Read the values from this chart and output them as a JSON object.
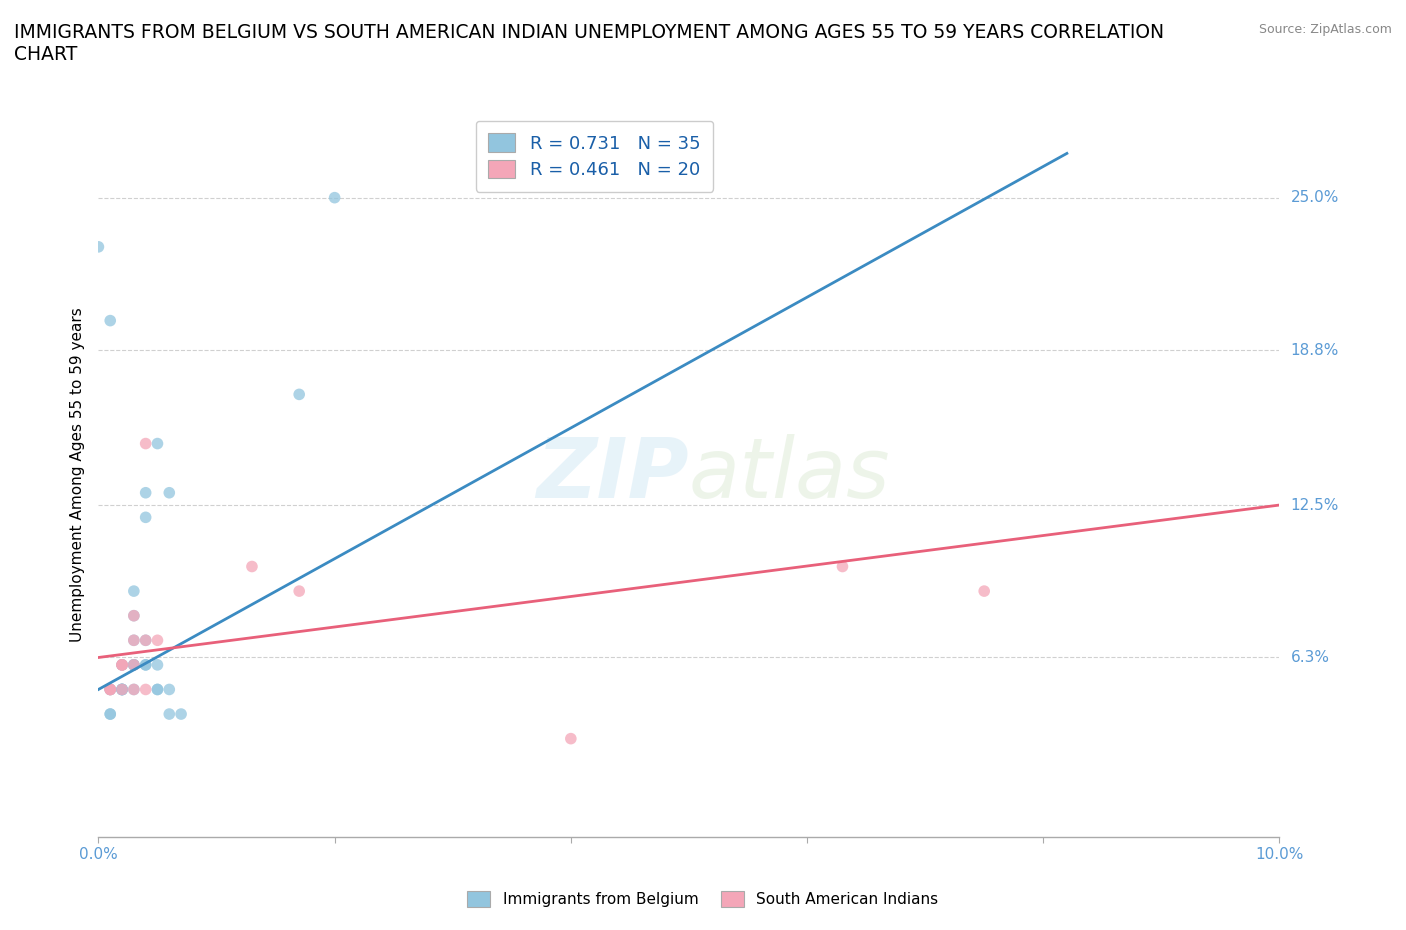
{
  "title": "IMMIGRANTS FROM BELGIUM VS SOUTH AMERICAN INDIAN UNEMPLOYMENT AMONG AGES 55 TO 59 YEARS CORRELATION\nCHART",
  "source": "Source: ZipAtlas.com",
  "ylabel": "Unemployment Among Ages 55 to 59 years",
  "xlim": [
    0.0,
    0.1
  ],
  "ylim": [
    -0.01,
    0.285
  ],
  "xticks": [
    0.0,
    0.02,
    0.04,
    0.06,
    0.08,
    0.1
  ],
  "ytick_vals_right": [
    0.063,
    0.125,
    0.188,
    0.25
  ],
  "ytick_labels_right": [
    "6.3%",
    "12.5%",
    "18.8%",
    "25.0%"
  ],
  "legend_r1": "R = 0.731   N = 35",
  "legend_r2": "R = 0.461   N = 20",
  "blue_color": "#92c5de",
  "pink_color": "#f4a6b8",
  "line_blue": "#3b8bc2",
  "line_pink": "#e8607a",
  "tick_color": "#5b9bd5",
  "watermark_zip": "ZIP",
  "watermark_atlas": "atlas",
  "background_color": "#ffffff",
  "grid_color": "#d0d0d0",
  "title_fontsize": 13.5,
  "axis_label_fontsize": 11,
  "tick_fontsize": 11,
  "blue_line_x0": 0.0,
  "blue_line_y0": 0.05,
  "blue_line_x1": 0.082,
  "blue_line_y1": 0.268,
  "pink_line_x0": 0.0,
  "pink_line_y0": 0.063,
  "pink_line_x1": 0.1,
  "pink_line_y1": 0.125,
  "belgium_scatter_x": [
    0.005,
    0.002,
    0.001,
    0.003,
    0.004,
    0.006,
    0.002,
    0.003,
    0.001,
    0.002,
    0.004,
    0.003,
    0.005,
    0.002,
    0.001,
    0.004,
    0.003,
    0.002,
    0.003,
    0.006,
    0.007,
    0.004,
    0.005,
    0.001,
    0.002,
    0.004,
    0.003,
    0.005,
    0.006,
    0.002,
    0.001,
    0.003,
    0.017,
    0.02,
    0.0
  ],
  "belgium_scatter_y": [
    0.05,
    0.06,
    0.04,
    0.05,
    0.07,
    0.13,
    0.05,
    0.06,
    0.05,
    0.06,
    0.12,
    0.08,
    0.15,
    0.05,
    0.04,
    0.13,
    0.09,
    0.05,
    0.06,
    0.05,
    0.04,
    0.06,
    0.05,
    0.2,
    0.05,
    0.06,
    0.07,
    0.06,
    0.04,
    0.05,
    0.05,
    0.06,
    0.17,
    0.25,
    0.23
  ],
  "sam_indian_scatter_x": [
    0.001,
    0.002,
    0.003,
    0.004,
    0.002,
    0.003,
    0.001,
    0.004,
    0.003,
    0.005,
    0.002,
    0.004,
    0.013,
    0.017,
    0.001,
    0.003,
    0.002,
    0.063,
    0.075,
    0.04
  ],
  "sam_indian_scatter_y": [
    0.05,
    0.06,
    0.07,
    0.05,
    0.06,
    0.08,
    0.05,
    0.15,
    0.06,
    0.07,
    0.06,
    0.07,
    0.1,
    0.09,
    0.05,
    0.05,
    0.05,
    0.1,
    0.09,
    0.03
  ]
}
